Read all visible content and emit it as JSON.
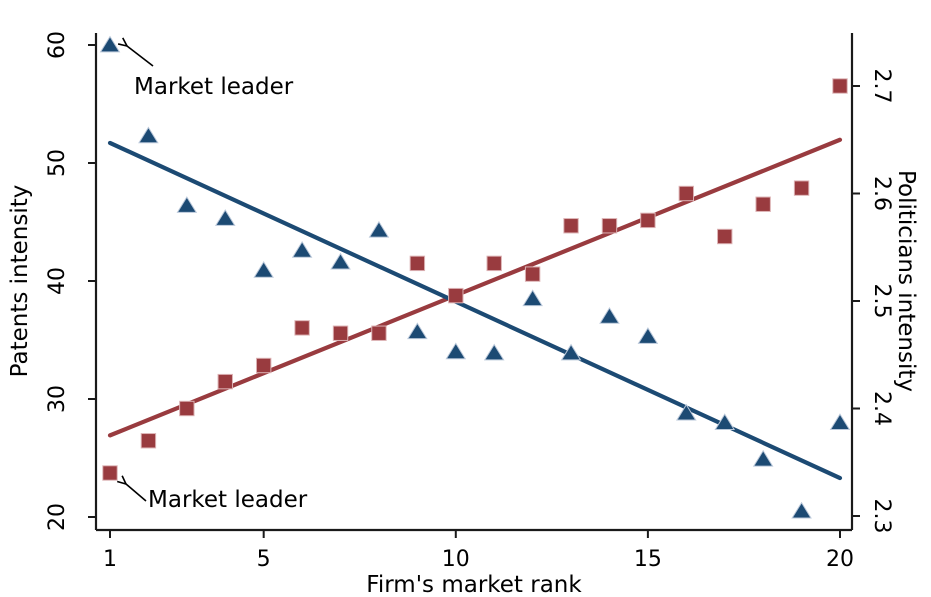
{
  "chart_data": {
    "type": "scatter",
    "title": "",
    "grid": false,
    "legend": "none",
    "x_values": [
      1,
      2,
      3,
      4,
      5,
      6,
      7,
      8,
      9,
      10,
      11,
      12,
      13,
      14,
      15,
      16,
      17,
      18,
      19,
      20
    ],
    "series": [
      {
        "name": "Patents intensity",
        "axis": "left",
        "marker": "triangle",
        "color": "#1c4a73",
        "edge_color": "#b9c7d9",
        "values": [
          60.0,
          52.3,
          46.4,
          45.3,
          40.9,
          42.6,
          41.6,
          44.3,
          35.7,
          34.0,
          33.9,
          38.5,
          33.9,
          37.0,
          35.3,
          28.8,
          28.0,
          24.9,
          20.5,
          28.0
        ]
      },
      {
        "name": "Politicians intensity",
        "axis": "right",
        "marker": "square",
        "color": "#993b3f",
        "edge_color": "#dcb2b4",
        "values": [
          2.34,
          2.37,
          2.4,
          2.425,
          2.44,
          2.475,
          2.47,
          2.47,
          2.535,
          2.505,
          2.535,
          2.525,
          2.57,
          2.57,
          2.575,
          2.6,
          2.56,
          2.59,
          2.605,
          2.7
        ]
      }
    ],
    "fit_lines": [
      {
        "series": "Patents intensity",
        "axis": "left",
        "color": "#1c4a73",
        "x_start": 1,
        "y_start": 51.7,
        "x_end": 20,
        "y_end": 23.3
      },
      {
        "series": "Politicians intensity",
        "axis": "right",
        "color": "#993b3f",
        "x_start": 1,
        "y_start": 2.375,
        "x_end": 20,
        "y_end": 2.65
      }
    ],
    "axes": {
      "x": {
        "label": "Firm's market rank",
        "ticks": [
          1,
          5,
          10,
          15,
          20
        ],
        "tick_labels": [
          "1",
          "5",
          "10",
          "15",
          "20"
        ],
        "range": [
          0.64,
          20.3
        ]
      },
      "left": {
        "label": "Patents intensity",
        "ticks": [
          20,
          30,
          40,
          50,
          60
        ],
        "tick_labels": [
          "20",
          "30",
          "40",
          "50",
          "60"
        ],
        "range": [
          18.9,
          61.0
        ]
      },
      "right": {
        "label": "Politicians intensity",
        "ticks": [
          2.3,
          2.4,
          2.5,
          2.6,
          2.7
        ],
        "tick_labels": [
          "2.3",
          "2.4",
          "2.5",
          "2.6",
          "2.7"
        ],
        "range": [
          2.287,
          2.749
        ]
      }
    },
    "annotations": [
      {
        "text": "Market leader",
        "target": "patents-rank-1-triangle"
      },
      {
        "text": "Market leader",
        "target": "politicians-rank-1-square"
      }
    ]
  }
}
